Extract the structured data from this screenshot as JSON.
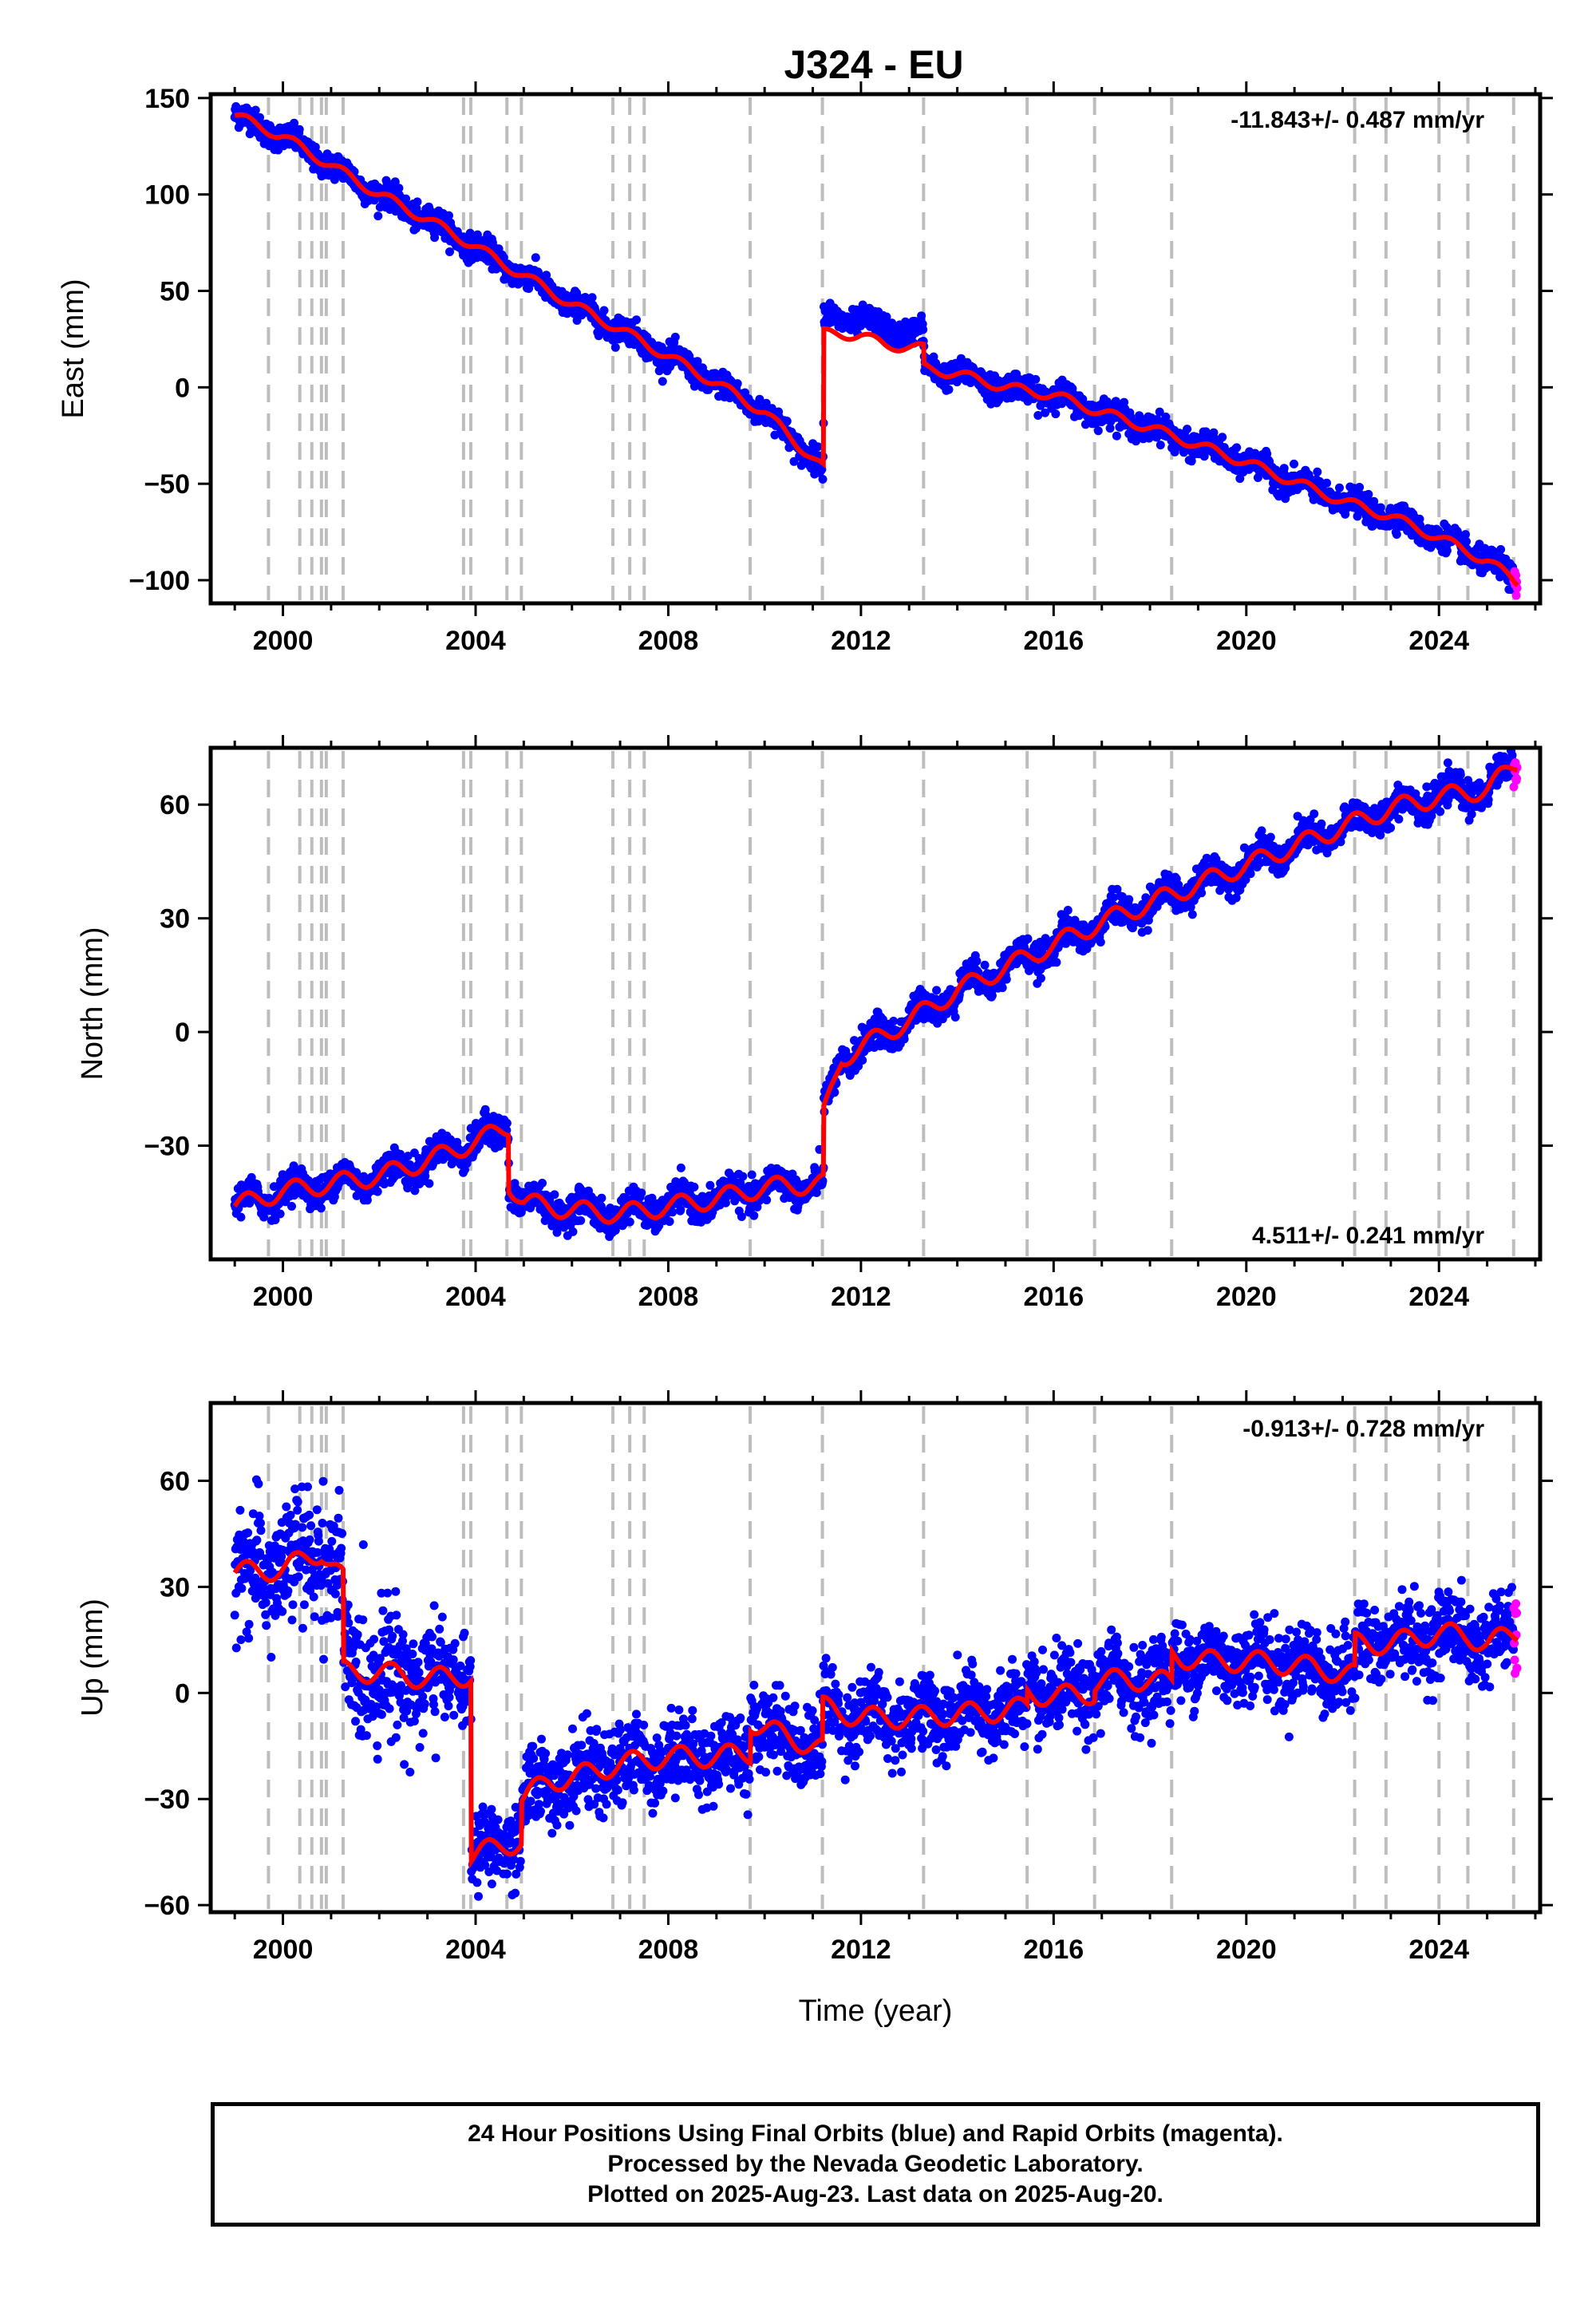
{
  "chart_data": {
    "type": "scatter",
    "title": "J324 - EU",
    "xlabel": "Time (year)",
    "x_range": [
      1998.5,
      2026.1
    ],
    "x_ticks": [
      2000,
      2004,
      2008,
      2012,
      2016,
      2020,
      2024
    ],
    "x_tick_labels": [
      "2000",
      "2004",
      "2008",
      "2012",
      "2016",
      "2020",
      "2024"
    ],
    "first_data": 1999.0,
    "last_data": 2025.63,
    "rapid_start": 2025.55,
    "colors": {
      "final": "#0000ff",
      "rapid": "#ff00ff",
      "model": "#ff0000",
      "event_lines": "#bdbdbd"
    },
    "event_lines": [
      1999.7,
      2000.35,
      2000.6,
      2000.8,
      2000.9,
      2001.25,
      2003.75,
      2003.9,
      2004.65,
      2004.95,
      2006.85,
      2007.2,
      2007.5,
      2009.7,
      2011.2,
      2013.3,
      2015.45,
      2016.85,
      2018.45,
      2022.25,
      2022.9,
      2024.0,
      2024.6,
      2025.55
    ],
    "panels": [
      {
        "ylabel": "East (mm)",
        "ylim": [
          -112,
          152
        ],
        "y_ticks": [
          150,
          100,
          50,
          0,
          -50,
          -100
        ],
        "y_tick_labels": [
          "150",
          "100",
          "50",
          "0",
          "−50",
          "−100"
        ],
        "rate": "-11.843+/- 0.487 mm/yr",
        "rate_position": "top-right",
        "model": [
          [
            1999.0,
            141
          ],
          [
            2000.0,
            130
          ],
          [
            2001.0,
            115
          ],
          [
            2002.0,
            100
          ],
          [
            2003.0,
            87
          ],
          [
            2004.0,
            73
          ],
          [
            2004.5,
            65
          ],
          [
            2005.0,
            58
          ],
          [
            2006.0,
            43
          ],
          [
            2007.0,
            30
          ],
          [
            2008.0,
            16
          ],
          [
            2009.0,
            2
          ],
          [
            2010.0,
            -13
          ],
          [
            2011.22,
            -42
          ],
          [
            2011.23,
            28
          ],
          [
            2012.0,
            27
          ],
          [
            2012.5,
            22
          ],
          [
            2013.3,
            20
          ],
          [
            2013.31,
            10
          ],
          [
            2014.0,
            7
          ],
          [
            2015.0,
            0
          ],
          [
            2016.0,
            -4
          ],
          [
            2017.0,
            -13
          ],
          [
            2018.0,
            -21
          ],
          [
            2019.0,
            -30
          ],
          [
            2020.0,
            -39
          ],
          [
            2021.0,
            -49
          ],
          [
            2022.0,
            -59
          ],
          [
            2023.0,
            -67
          ],
          [
            2024.0,
            -78
          ],
          [
            2025.0,
            -90
          ],
          [
            2025.63,
            -101
          ]
        ],
        "seasonal_amp": 2.5,
        "scatter": 3.2,
        "scatter_overrides": [
          {
            "from": 2011.23,
            "to": 2013.3,
            "offset": 8
          }
        ]
      },
      {
        "ylabel": "North (mm)",
        "ylim": [
          -60,
          75
        ],
        "y_ticks": [
          60,
          30,
          0,
          -30
        ],
        "y_tick_labels": [
          "60",
          "30",
          "0",
          "−30"
        ],
        "rate": "4.511+/- 0.241 mm/yr",
        "rate_position": "bottom-right",
        "model": [
          [
            1999.0,
            -46
          ],
          [
            2000.0,
            -42
          ],
          [
            2001.0,
            -40
          ],
          [
            2002.0,
            -38
          ],
          [
            2003.0,
            -34
          ],
          [
            2004.0,
            -29
          ],
          [
            2004.68,
            -25
          ],
          [
            2004.69,
            -40
          ],
          [
            2005.0,
            -45
          ],
          [
            2006.0,
            -47
          ],
          [
            2007.0,
            -48
          ],
          [
            2008.0,
            -46
          ],
          [
            2009.0,
            -44
          ],
          [
            2010.0,
            -41
          ],
          [
            2011.22,
            -40
          ],
          [
            2011.23,
            -22
          ],
          [
            2011.6,
            -7
          ],
          [
            2012.0,
            -4
          ],
          [
            2013.0,
            3
          ],
          [
            2014.0,
            11
          ],
          [
            2015.0,
            17
          ],
          [
            2016.0,
            23
          ],
          [
            2017.0,
            29
          ],
          [
            2018.0,
            34
          ],
          [
            2019.0,
            39
          ],
          [
            2020.0,
            44
          ],
          [
            2021.0,
            49
          ],
          [
            2022.0,
            54
          ],
          [
            2023.0,
            59
          ],
          [
            2024.0,
            62
          ],
          [
            2025.0,
            64
          ],
          [
            2025.63,
            71
          ]
        ],
        "seasonal_amp": 2.5,
        "scatter": 2.0
      },
      {
        "ylabel": "Up (mm)",
        "ylim": [
          -62,
          82
        ],
        "y_ticks": [
          60,
          30,
          0,
          -30,
          -60
        ],
        "y_tick_labels": [
          "60",
          "30",
          "0",
          "−30",
          "−60"
        ],
        "rate": "-0.913+/- 0.728 mm/yr",
        "rate_position": "top-right",
        "model": [
          [
            1999.0,
            34
          ],
          [
            2000.0,
            35
          ],
          [
            2000.8,
            40
          ],
          [
            2001.25,
            32
          ],
          [
            2001.26,
            6
          ],
          [
            2002.0,
            6
          ],
          [
            2003.0,
            4
          ],
          [
            2003.9,
            5
          ],
          [
            2003.91,
            -46
          ],
          [
            2004.6,
            -43
          ],
          [
            2004.95,
            -42
          ],
          [
            2004.96,
            -30
          ],
          [
            2005.5,
            -25
          ],
          [
            2006.0,
            -24
          ],
          [
            2007.0,
            -20
          ],
          [
            2008.0,
            -18
          ],
          [
            2009.0,
            -18
          ],
          [
            2009.7,
            -17
          ],
          [
            2009.71,
            -8
          ],
          [
            2010.0,
            -10
          ],
          [
            2011.2,
            -16
          ],
          [
            2011.21,
            -4
          ],
          [
            2012.0,
            -7
          ],
          [
            2013.0,
            -7
          ],
          [
            2014.0,
            -6
          ],
          [
            2015.0,
            -5
          ],
          [
            2015.45,
            -4
          ],
          [
            2015.46,
            0
          ],
          [
            2016.0,
            -1
          ],
          [
            2016.85,
            0
          ],
          [
            2016.86,
            3
          ],
          [
            2017.5,
            4
          ],
          [
            2018.45,
            3
          ],
          [
            2018.46,
            11
          ],
          [
            2019.0,
            9
          ],
          [
            2020.0,
            9
          ],
          [
            2021.0,
            8
          ],
          [
            2022.25,
            5
          ],
          [
            2022.26,
            14
          ],
          [
            2023.0,
            14
          ],
          [
            2024.0,
            17
          ],
          [
            2024.6,
            16
          ],
          [
            2025.0,
            14
          ],
          [
            2025.63,
            17
          ]
        ],
        "seasonal_amp": 3.0,
        "scatter": 5.5,
        "scatter_overrides": [
          {
            "from": 1999.0,
            "to": 2003.2,
            "extra": 3.5
          }
        ]
      }
    ],
    "footer": [
      "24 Hour Positions Using Final Orbits (blue) and Rapid Orbits (magenta).",
      "Processed by the Nevada Geodetic Laboratory.",
      "Plotted on 2025-Aug-23. Last data on 2025-Aug-20."
    ]
  }
}
